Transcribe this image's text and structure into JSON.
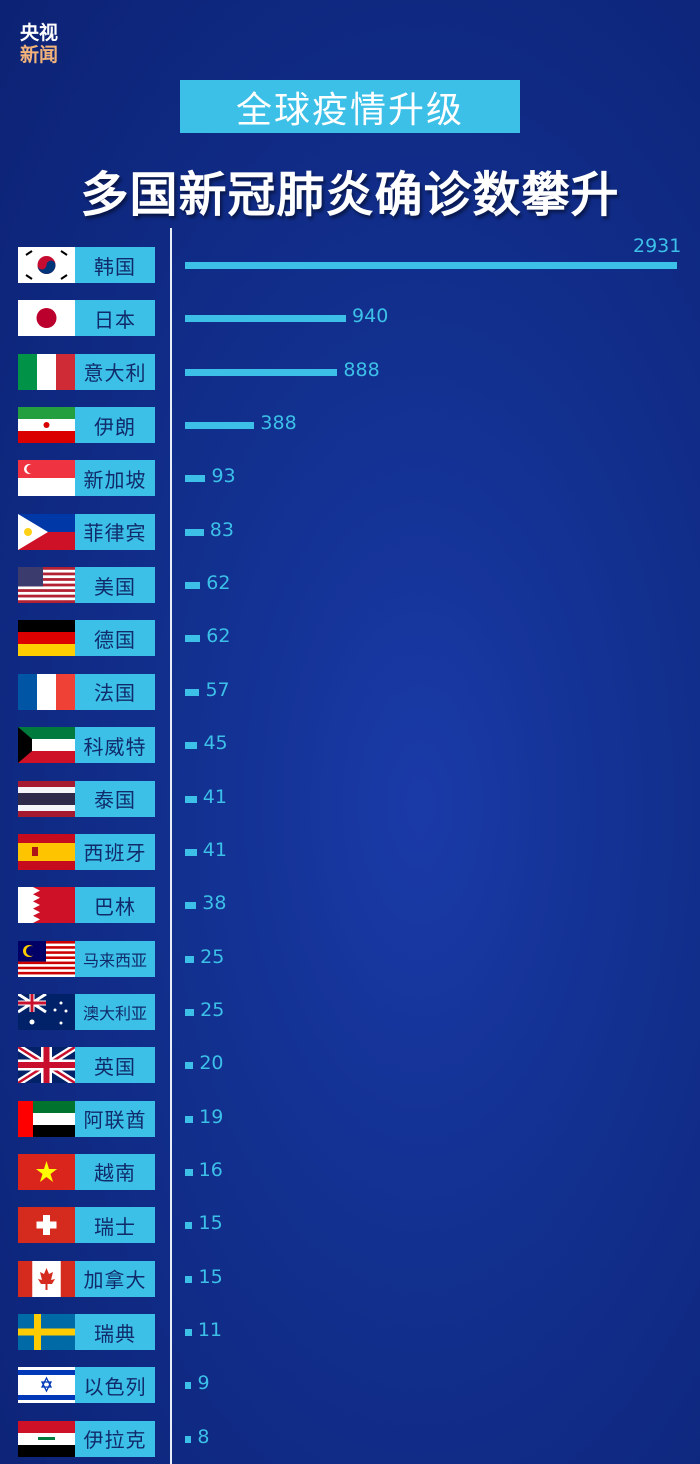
{
  "logo": {
    "line1": "央视",
    "line2": "新闻"
  },
  "subtitle": "全球疫情升级",
  "title": "多国新冠肺炎确诊数攀升",
  "colors": {
    "background": "#12308f",
    "accent": "#3cc0e8",
    "label_text": "#102a6a"
  },
  "chart_data": {
    "type": "bar",
    "orientation": "horizontal",
    "categories": [
      "韩国",
      "日本",
      "意大利",
      "伊朗",
      "新加坡",
      "菲律宾",
      "美国",
      "德国",
      "法国",
      "科威特",
      "泰国",
      "西班牙",
      "巴林",
      "马来西亚",
      "澳大利亚",
      "英国",
      "阿联酋",
      "越南",
      "瑞士",
      "加拿大",
      "瑞典",
      "以色列",
      "伊拉克"
    ],
    "flags": [
      "kr",
      "jp",
      "it",
      "ir",
      "sg",
      "ph",
      "us",
      "de",
      "fr",
      "kw",
      "th",
      "es",
      "bh",
      "my",
      "au",
      "gb",
      "ae",
      "vn",
      "ch",
      "ca",
      "se",
      "il",
      "iq"
    ],
    "values": [
      2931,
      940,
      888,
      388,
      93,
      83,
      62,
      62,
      57,
      45,
      41,
      41,
      38,
      25,
      25,
      20,
      19,
      16,
      15,
      15,
      11,
      9,
      8
    ],
    "data_labels": true,
    "grid": false
  }
}
